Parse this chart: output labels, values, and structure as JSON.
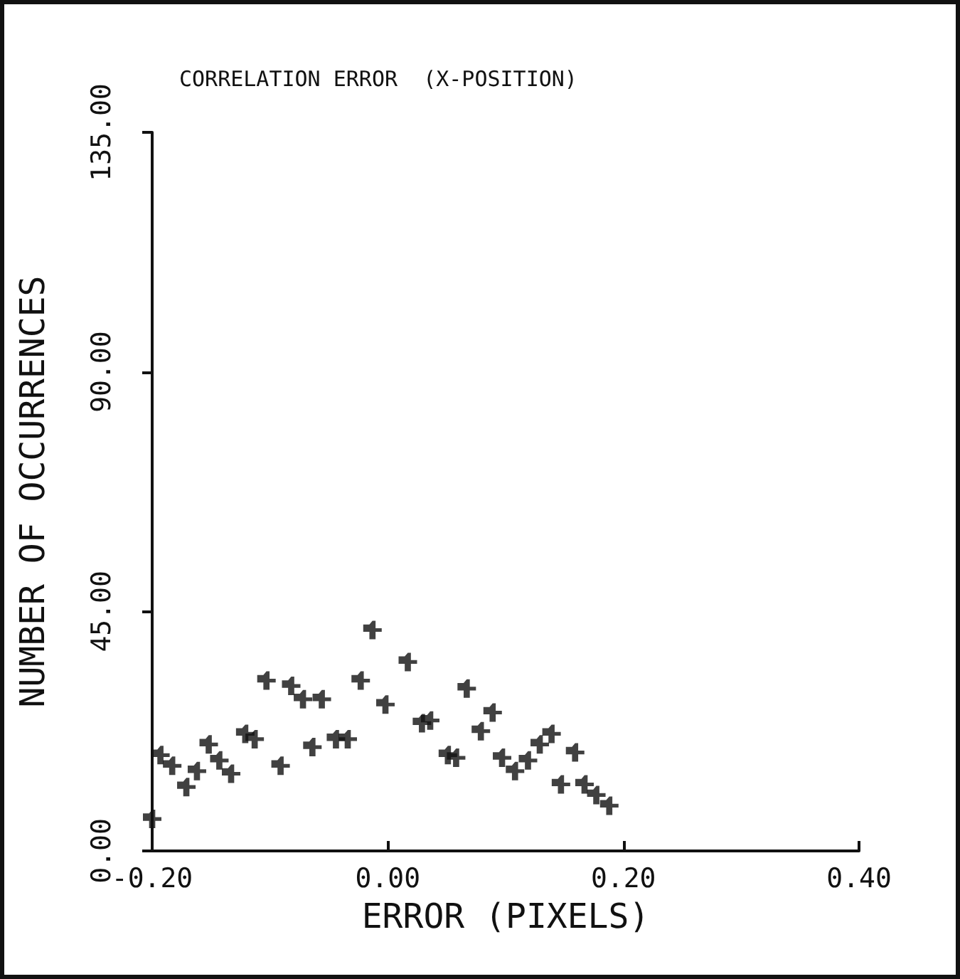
{
  "chart_data": {
    "type": "scatter",
    "title": "CORRELATION ERROR  (X-POSITION)",
    "xlabel": "ERROR (PIXELS)",
    "ylabel": "NUMBER OF OCCURRENCES",
    "x": [
      -0.2,
      -0.193,
      -0.183,
      -0.171,
      -0.162,
      -0.152,
      -0.143,
      -0.133,
      -0.121,
      -0.113,
      -0.103,
      -0.091,
      -0.082,
      -0.072,
      -0.064,
      -0.056,
      -0.044,
      -0.034,
      -0.023,
      -0.013,
      -0.002,
      0.017,
      0.029,
      0.036,
      0.051,
      0.058,
      0.067,
      0.079,
      0.089,
      0.097,
      0.108,
      0.119,
      0.129,
      0.139,
      0.147,
      0.159,
      0.167,
      0.177,
      0.188
    ],
    "values": [
      6,
      18,
      16,
      12,
      15,
      20,
      17,
      14.5,
      22,
      21,
      32,
      16,
      31,
      28.5,
      19.5,
      28.5,
      21,
      21,
      32,
      41.5,
      27.5,
      35.5,
      24,
      24.5,
      18,
      17.5,
      30.5,
      22.5,
      26,
      17.5,
      15,
      17,
      20,
      22,
      12.5,
      18.5,
      12.5,
      10.5,
      8.5
    ],
    "color": "#111111",
    "marker": "cross",
    "grid": false,
    "xlim": [
      -0.2,
      0.4
    ],
    "xticks": [
      {
        "value": -0.2,
        "label": "-0.20"
      },
      {
        "value": 0,
        "label": "0.00"
      },
      {
        "value": 0.2,
        "label": "0.20"
      },
      {
        "value": 0.4,
        "label": "0.40"
      }
    ],
    "ylim": [
      0,
      135
    ],
    "yticks": [
      {
        "value": 0,
        "label": "0.00"
      },
      {
        "value": 45,
        "label": "45.00"
      },
      {
        "value": 90,
        "label": "90.00"
      },
      {
        "value": 135,
        "label": "135.00"
      }
    ]
  }
}
